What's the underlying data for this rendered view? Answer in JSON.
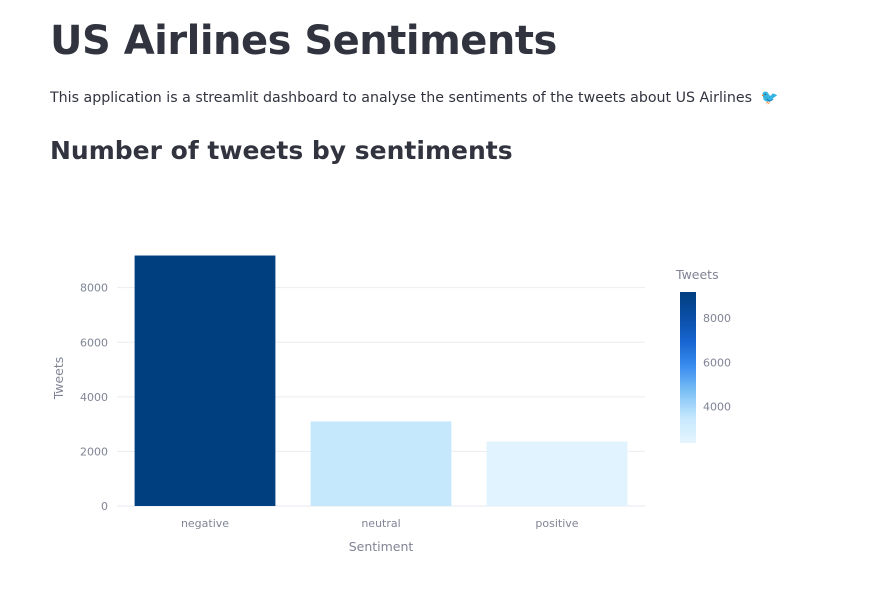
{
  "page": {
    "title": "US Airlines Sentiments",
    "description": "This application is a streamlit dashboard to analyse the sentiments of the tweets about US Airlines",
    "description_emoji": "🐦",
    "subheader": "Number of tweets by sentiments"
  },
  "chart_data": {
    "type": "bar",
    "categories": [
      "negative",
      "neutral",
      "positive"
    ],
    "values": [
      9178,
      3099,
      2363
    ],
    "xlabel": "Sentiment",
    "ylabel": "Tweets",
    "ylim": [
      0,
      9600
    ],
    "yticks": [
      0,
      2000,
      4000,
      6000,
      8000
    ],
    "bar_colors": [
      "#003f7f",
      "#c6e8fd",
      "#e1f3fe"
    ],
    "grid": true,
    "colorbar": {
      "title": "Tweets",
      "ticks": [
        4000,
        6000,
        8000
      ],
      "range": [
        2363,
        9178
      ],
      "colors": [
        "#e6f5fe",
        "#c6e8fd",
        "#7fc2f5",
        "#3d8ff0",
        "#1766d2",
        "#0a4ea6",
        "#003f7f"
      ],
      "placement": "right"
    }
  }
}
